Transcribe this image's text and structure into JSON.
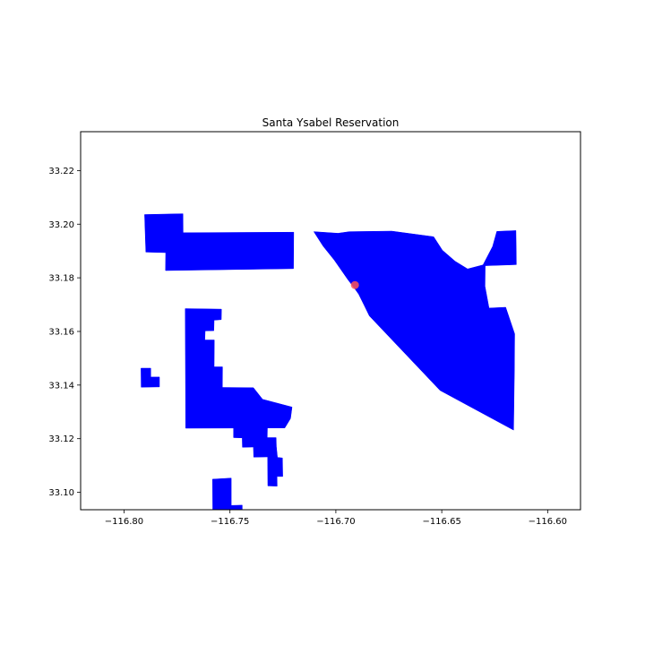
{
  "title": "Santa Ysabel Reservation",
  "axes": {
    "xlim": [
      -116.8205,
      -116.5845
    ],
    "ylim": [
      33.0935,
      33.2345
    ],
    "x_ticks": [
      -116.8,
      -116.75,
      -116.7,
      -116.65,
      -116.6
    ],
    "y_ticks": [
      33.1,
      33.12,
      33.14,
      33.16,
      33.18,
      33.2,
      33.22
    ],
    "x_tick_labels": [
      "−116.80",
      "−116.75",
      "−116.70",
      "−116.65",
      "−116.60"
    ],
    "y_tick_labels": [
      "33.10",
      "33.12",
      "33.14",
      "33.16",
      "33.18",
      "33.20",
      "33.22"
    ],
    "grid": false
  },
  "colors": {
    "reservation_fill": "#0000ff",
    "marker_fill": "#ff5555"
  },
  "map_data": {
    "regions": [
      {
        "name": "north-west-block",
        "coords": [
          [
            -116.7903,
            33.2036
          ],
          [
            -116.7722,
            33.2039
          ],
          [
            -116.7721,
            33.1968
          ],
          [
            -116.7199,
            33.197
          ],
          [
            -116.72,
            33.1834
          ],
          [
            -116.7804,
            33.1827
          ],
          [
            -116.7803,
            33.1894
          ],
          [
            -116.7897,
            33.1896
          ]
        ]
      },
      {
        "name": "central-west-block",
        "coords": [
          [
            -116.7711,
            33.1685
          ],
          [
            -116.754,
            33.1683
          ],
          [
            -116.7541,
            33.1644
          ],
          [
            -116.7575,
            33.1642
          ],
          [
            -116.7576,
            33.1603
          ],
          [
            -116.7617,
            33.1602
          ],
          [
            -116.7619,
            33.1568
          ],
          [
            -116.7574,
            33.1568
          ],
          [
            -116.7575,
            33.1468
          ],
          [
            -116.7535,
            33.1468
          ],
          [
            -116.7536,
            33.1391
          ],
          [
            -116.7389,
            33.139
          ],
          [
            -116.7346,
            33.1347
          ],
          [
            -116.7207,
            33.1318
          ],
          [
            -116.7214,
            33.1275
          ],
          [
            -116.7241,
            33.124
          ],
          [
            -116.7709,
            33.1239
          ]
        ]
      },
      {
        "name": "south-strip",
        "coords": [
          [
            -116.7483,
            33.124
          ],
          [
            -116.7323,
            33.124
          ],
          [
            -116.7324,
            33.1204
          ],
          [
            -116.7282,
            33.1204
          ],
          [
            -116.7281,
            33.117
          ],
          [
            -116.7276,
            33.113
          ],
          [
            -116.7252,
            33.1128
          ],
          [
            -116.7251,
            33.1059
          ],
          [
            -116.7278,
            33.1059
          ],
          [
            -116.7277,
            33.1023
          ],
          [
            -116.7321,
            33.1024
          ],
          [
            -116.7322,
            33.1132
          ],
          [
            -116.7388,
            33.1131
          ],
          [
            -116.7389,
            33.1169
          ],
          [
            -116.7441,
            33.1168
          ],
          [
            -116.7442,
            33.1203
          ],
          [
            -116.7483,
            33.1204
          ]
        ]
      },
      {
        "name": "south-small-block",
        "coords": [
          [
            -116.7582,
            33.1049
          ],
          [
            -116.7494,
            33.1053
          ],
          [
            -116.7494,
            33.0951
          ],
          [
            -116.7442,
            33.0952
          ],
          [
            -116.7442,
            33.0935
          ],
          [
            -116.7581,
            33.0935
          ]
        ]
      },
      {
        "name": "west-fragment",
        "coords": [
          [
            -116.792,
            33.1463
          ],
          [
            -116.7874,
            33.1463
          ],
          [
            -116.7874,
            33.143
          ],
          [
            -116.7833,
            33.143
          ],
          [
            -116.7833,
            33.1393
          ],
          [
            -116.7919,
            33.1392
          ]
        ]
      },
      {
        "name": "east-block",
        "coords": [
          [
            -116.7104,
            33.1972
          ],
          [
            -116.699,
            33.1966
          ],
          [
            -116.6936,
            33.1972
          ],
          [
            -116.6736,
            33.1974
          ],
          [
            -116.6538,
            33.1953
          ],
          [
            -116.6497,
            33.1903
          ],
          [
            -116.6437,
            33.1862
          ],
          [
            -116.6378,
            33.1833
          ],
          [
            -116.6305,
            33.1848
          ],
          [
            -116.626,
            33.1917
          ],
          [
            -116.624,
            33.1973
          ],
          [
            -116.615,
            33.1976
          ],
          [
            -116.6148,
            33.1849
          ],
          [
            -116.6295,
            33.1845
          ],
          [
            -116.6296,
            33.1768
          ],
          [
            -116.6277,
            33.1687
          ],
          [
            -116.6198,
            33.169
          ],
          [
            -116.6156,
            33.1591
          ],
          [
            -116.6157,
            33.1458
          ],
          [
            -116.6161,
            33.1232
          ],
          [
            -116.6508,
            33.138
          ],
          [
            -116.6842,
            33.1658
          ],
          [
            -116.6866,
            33.1697
          ],
          [
            -116.6892,
            33.1739
          ],
          [
            -116.6913,
            33.1762
          ],
          [
            -116.6943,
            33.1793
          ],
          [
            -116.7008,
            33.1867
          ],
          [
            -116.706,
            33.1918
          ]
        ]
      }
    ],
    "markers": [
      {
        "name": "location-marker",
        "lon": -116.691,
        "lat": 33.1773
      }
    ]
  }
}
